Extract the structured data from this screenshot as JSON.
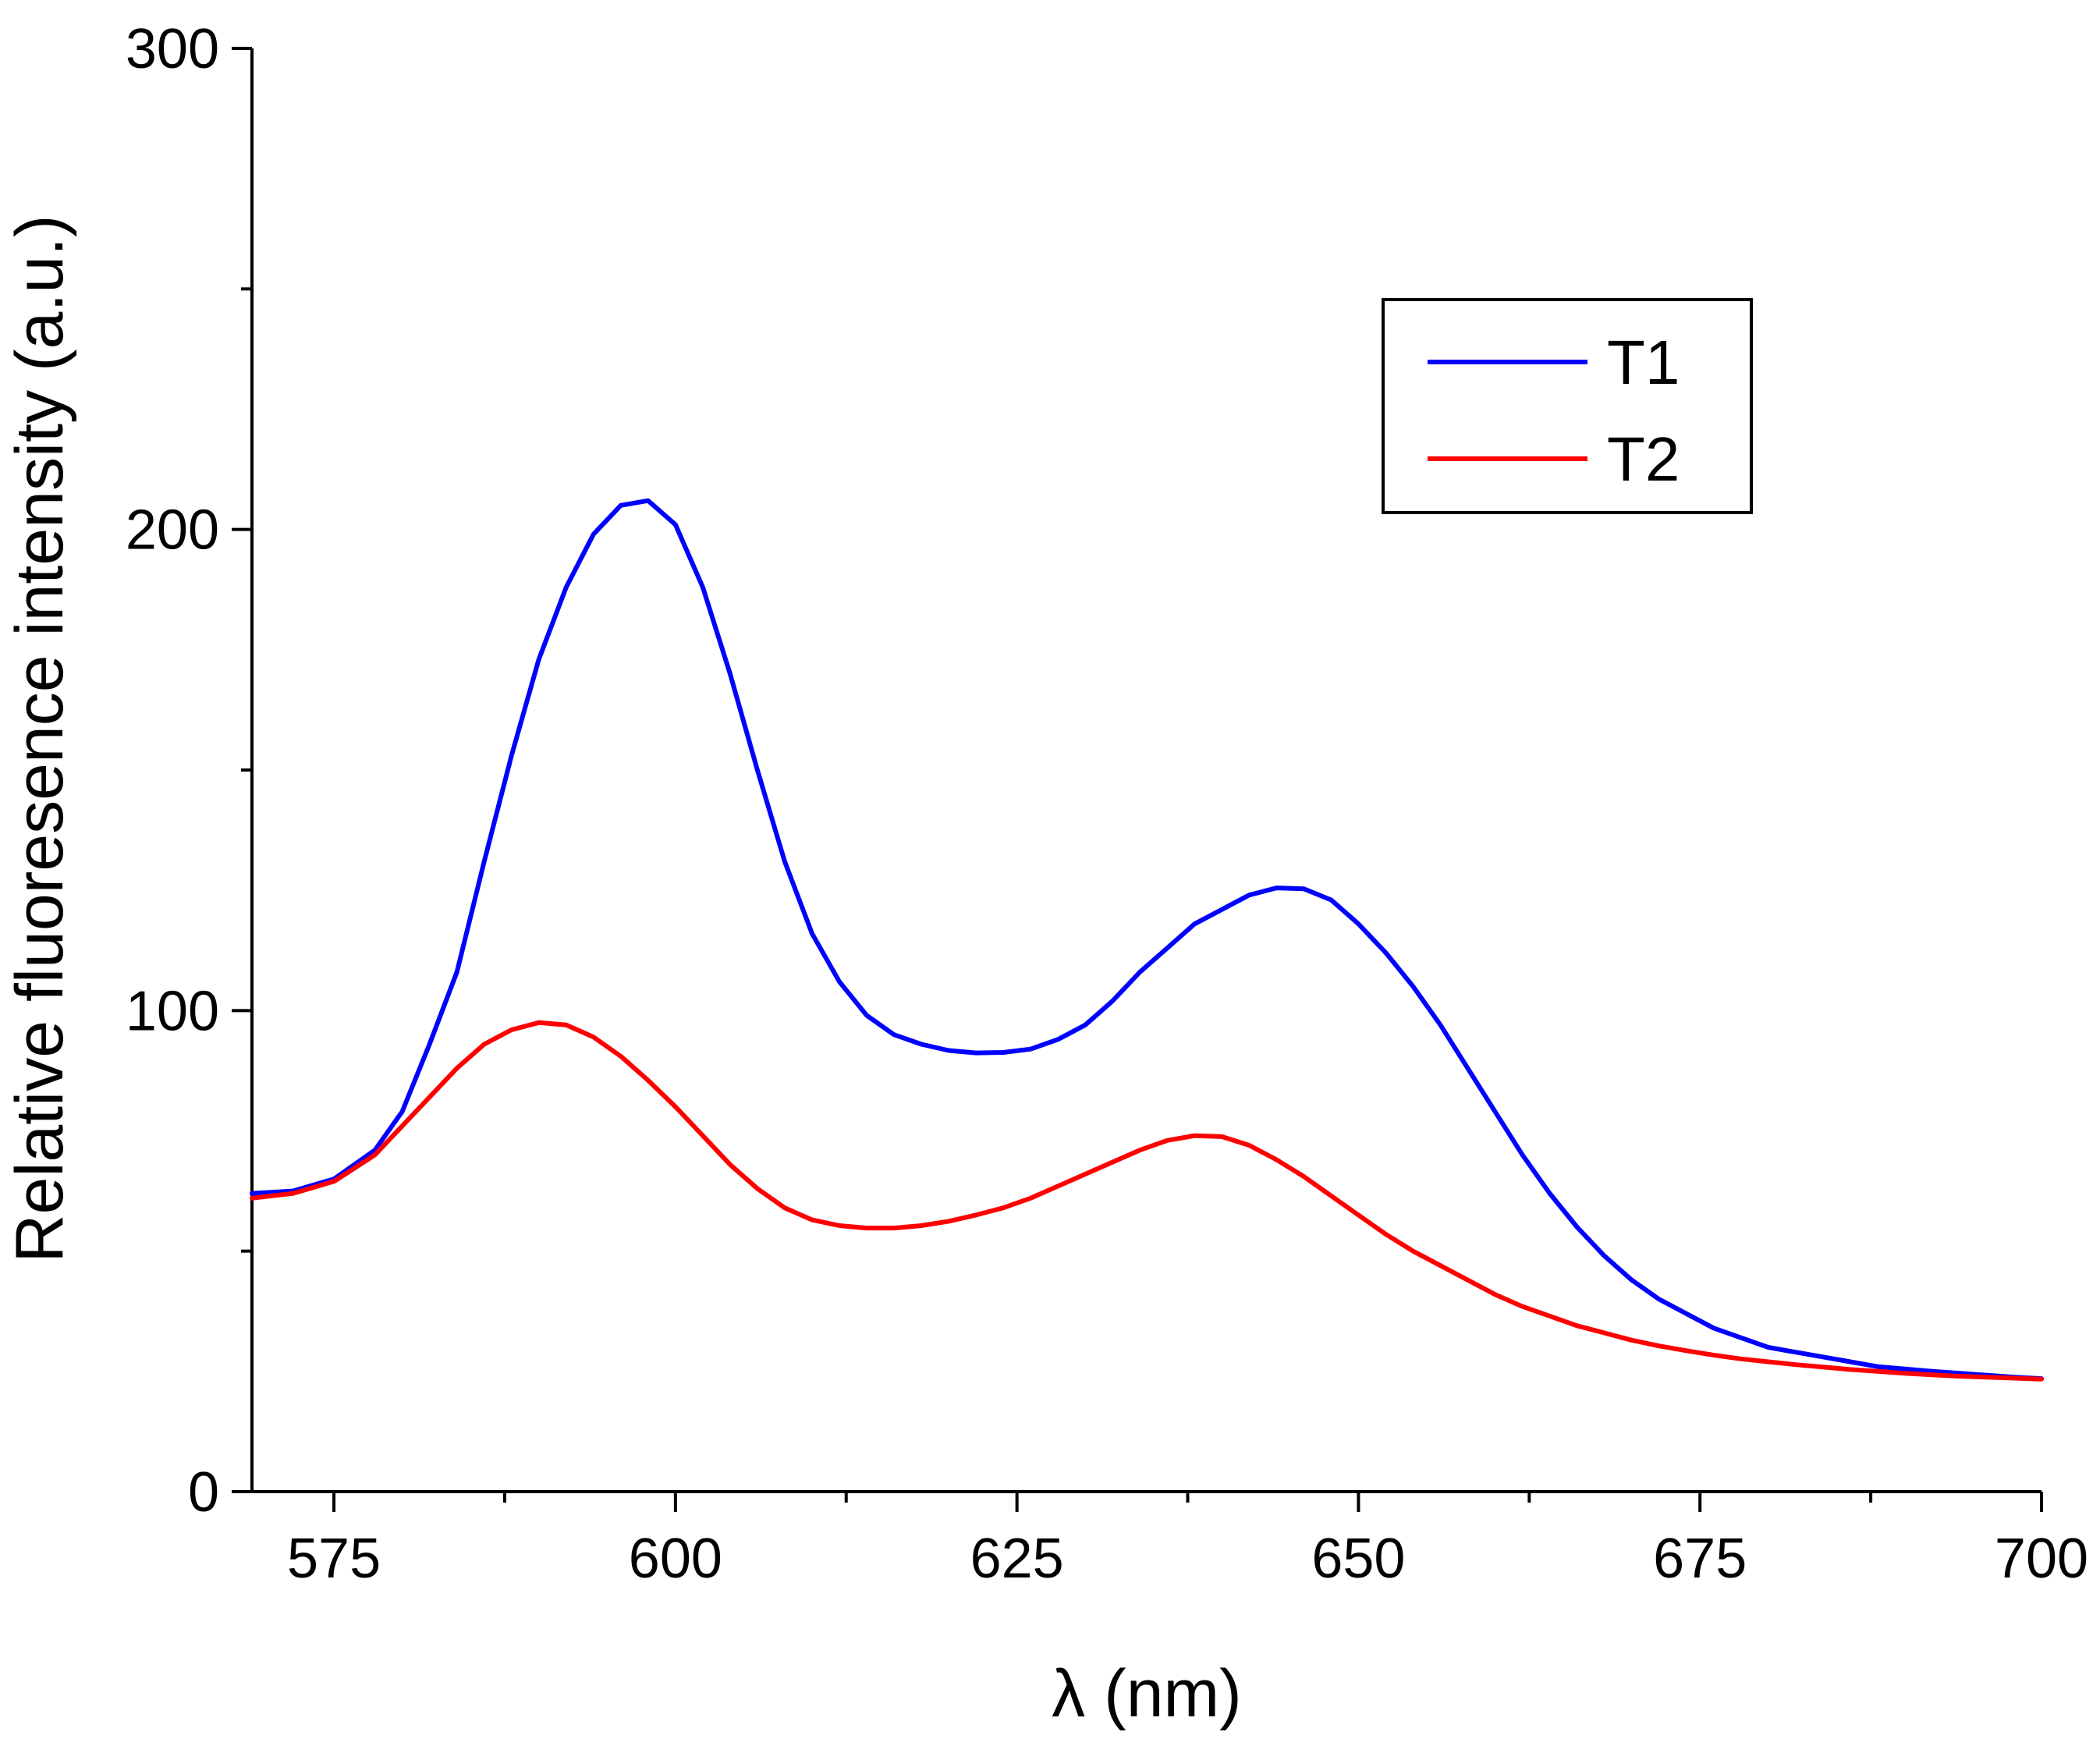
{
  "chart_data": {
    "type": "line",
    "title": "",
    "xlabel": "λ (nm)",
    "ylabel": "Relative fluoresence intensity (a.u.)",
    "xlim": [
      569,
      700
    ],
    "ylim": [
      0,
      300
    ],
    "x_ticks": [
      575,
      600,
      625,
      650,
      675,
      700
    ],
    "x_minor_ticks": [
      587.5,
      612.5,
      637.5,
      662.5,
      687.5
    ],
    "y_ticks": [
      0,
      100,
      200,
      300
    ],
    "y_minor_ticks": [
      50,
      150,
      250
    ],
    "grid": false,
    "legend_position": "top-right",
    "series": [
      {
        "name": "T1",
        "color": "#0000ff",
        "points": [
          [
            569,
            62
          ],
          [
            572,
            62.5
          ],
          [
            575,
            65
          ],
          [
            578,
            71
          ],
          [
            580,
            79
          ],
          [
            582,
            93
          ],
          [
            584,
            108
          ],
          [
            586,
            131
          ],
          [
            588,
            153
          ],
          [
            590,
            173
          ],
          [
            592,
            188
          ],
          [
            594,
            199
          ],
          [
            596,
            205
          ],
          [
            598,
            206
          ],
          [
            600,
            201
          ],
          [
            602,
            188
          ],
          [
            604,
            170
          ],
          [
            606,
            150
          ],
          [
            608,
            131
          ],
          [
            610,
            116
          ],
          [
            612,
            106
          ],
          [
            614,
            99
          ],
          [
            616,
            95
          ],
          [
            618,
            93
          ],
          [
            620,
            91.7
          ],
          [
            622,
            91.2
          ],
          [
            624,
            91.3
          ],
          [
            626,
            92
          ],
          [
            628,
            94
          ],
          [
            630,
            97
          ],
          [
            632,
            102
          ],
          [
            634,
            108
          ],
          [
            636,
            113
          ],
          [
            638,
            118
          ],
          [
            640,
            121
          ],
          [
            642,
            124
          ],
          [
            644,
            125.5
          ],
          [
            646,
            125.3
          ],
          [
            648,
            123
          ],
          [
            650,
            118
          ],
          [
            652,
            112
          ],
          [
            654,
            105
          ],
          [
            656,
            97
          ],
          [
            658,
            88
          ],
          [
            660,
            79
          ],
          [
            662,
            70
          ],
          [
            664,
            62
          ],
          [
            666,
            55
          ],
          [
            668,
            49
          ],
          [
            670,
            44
          ],
          [
            672,
            40
          ],
          [
            674,
            37
          ],
          [
            676,
            34
          ],
          [
            678,
            32
          ],
          [
            680,
            30
          ],
          [
            682,
            29
          ],
          [
            684,
            28
          ],
          [
            686,
            27
          ],
          [
            688,
            26
          ],
          [
            690,
            25.5
          ],
          [
            692,
            25
          ],
          [
            694,
            24.6
          ],
          [
            696,
            24.2
          ],
          [
            698,
            23.8
          ],
          [
            700,
            23.5
          ]
        ]
      },
      {
        "name": "T2",
        "color": "#ff0000",
        "points": [
          [
            569,
            61
          ],
          [
            572,
            62
          ],
          [
            575,
            64.5
          ],
          [
            578,
            70
          ],
          [
            580,
            76
          ],
          [
            582,
            82
          ],
          [
            584,
            88
          ],
          [
            586,
            93
          ],
          [
            588,
            96
          ],
          [
            590,
            97.5
          ],
          [
            592,
            97
          ],
          [
            594,
            94.5
          ],
          [
            596,
            90.5
          ],
          [
            598,
            85.5
          ],
          [
            600,
            80
          ],
          [
            602,
            74
          ],
          [
            604,
            68
          ],
          [
            606,
            63
          ],
          [
            608,
            59
          ],
          [
            610,
            56.5
          ],
          [
            612,
            55.3
          ],
          [
            614,
            54.8
          ],
          [
            616,
            54.8
          ],
          [
            618,
            55.3
          ],
          [
            620,
            56.2
          ],
          [
            622,
            57.5
          ],
          [
            624,
            59
          ],
          [
            626,
            61
          ],
          [
            628,
            63.5
          ],
          [
            630,
            66
          ],
          [
            632,
            68.5
          ],
          [
            634,
            71
          ],
          [
            636,
            73
          ],
          [
            638,
            74
          ],
          [
            640,
            73.8
          ],
          [
            642,
            72
          ],
          [
            644,
            69
          ],
          [
            646,
            65.5
          ],
          [
            648,
            61.5
          ],
          [
            650,
            57.5
          ],
          [
            652,
            53.5
          ],
          [
            654,
            50
          ],
          [
            656,
            47
          ],
          [
            658,
            44
          ],
          [
            660,
            41
          ],
          [
            662,
            38.5
          ],
          [
            664,
            36.5
          ],
          [
            666,
            34.5
          ],
          [
            668,
            33
          ],
          [
            670,
            31.5
          ],
          [
            672,
            30.3
          ],
          [
            674,
            29.3
          ],
          [
            676,
            28.4
          ],
          [
            678,
            27.6
          ],
          [
            680,
            27
          ],
          [
            682,
            26.4
          ],
          [
            684,
            25.9
          ],
          [
            686,
            25.4
          ],
          [
            688,
            25
          ],
          [
            690,
            24.6
          ],
          [
            692,
            24.3
          ],
          [
            694,
            24
          ],
          [
            696,
            23.8
          ],
          [
            698,
            23.6
          ],
          [
            700,
            23.4
          ]
        ]
      }
    ]
  }
}
